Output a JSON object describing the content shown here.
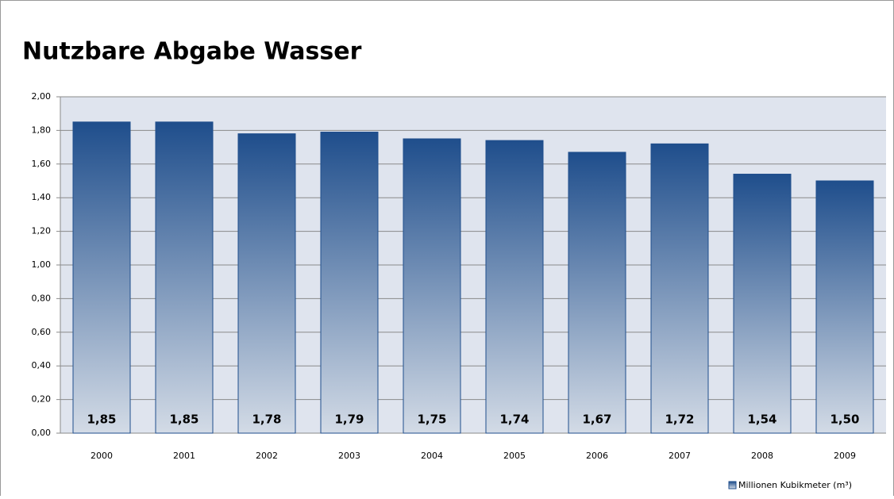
{
  "chart_data": {
    "type": "bar",
    "title": "Nutzbare Abgabe Wasser",
    "categories": [
      "2000",
      "2001",
      "2002",
      "2003",
      "2004",
      "2005",
      "2006",
      "2007",
      "2008",
      "2009"
    ],
    "series": [
      {
        "name": "Millionen Kubikmeter (m³)",
        "color": "#1f4e8c",
        "values": [
          1.85,
          1.85,
          1.78,
          1.79,
          1.75,
          1.74,
          1.67,
          1.72,
          1.54,
          1.5
        ],
        "value_labels": [
          "1,85",
          "1,85",
          "1,78",
          "1,79",
          "1,75",
          "1,74",
          "1,67",
          "1,72",
          "1,54",
          "1,50"
        ]
      }
    ],
    "ylim": [
      0,
      2
    ],
    "yticks": [
      {
        "value": 0,
        "label": "0,00"
      },
      {
        "value": 0.2,
        "label": "0,20"
      },
      {
        "value": 0.4,
        "label": "0,40"
      },
      {
        "value": 0.6,
        "label": "0,60"
      },
      {
        "value": 0.8,
        "label": "0,80"
      },
      {
        "value": 1,
        "label": "1,00"
      },
      {
        "value": 1.2,
        "label": "1,20"
      },
      {
        "value": 1.4,
        "label": "1,40"
      },
      {
        "value": 1.6,
        "label": "1,60"
      },
      {
        "value": 1.8,
        "label": "1,80"
      },
      {
        "value": 2,
        "label": "2,00"
      }
    ],
    "grid": true,
    "legend": "bottom-right"
  }
}
